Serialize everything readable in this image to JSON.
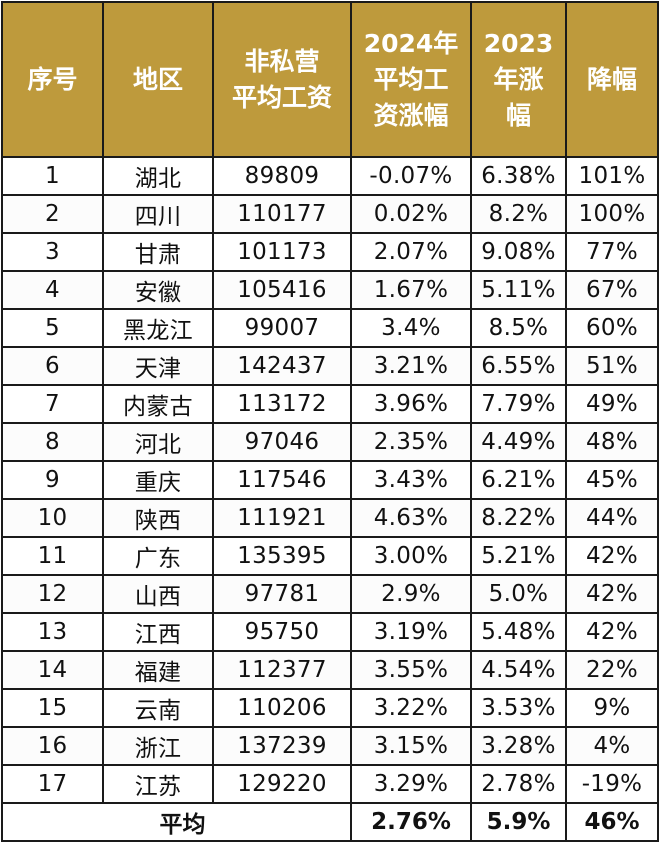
{
  "table": {
    "headers": [
      [
        "序号"
      ],
      [
        "地区"
      ],
      [
        "非私营",
        "平均工资"
      ],
      [
        "2024年",
        "平均工",
        "资涨幅"
      ],
      [
        "2023",
        "年涨",
        "幅"
      ],
      [
        "降幅"
      ]
    ],
    "rows": [
      [
        "1",
        "湖北",
        "89809",
        "-0.07%",
        "6.38%",
        "101%"
      ],
      [
        "2",
        "四川",
        "110177",
        "0.02%",
        "8.2%",
        "100%"
      ],
      [
        "3",
        "甘肃",
        "101173",
        "2.07%",
        "9.08%",
        "77%"
      ],
      [
        "4",
        "安徽",
        "105416",
        "1.67%",
        "5.11%",
        "67%"
      ],
      [
        "5",
        "黑龙江",
        "99007",
        "3.4%",
        "8.5%",
        "60%"
      ],
      [
        "6",
        "天津",
        "142437",
        "3.21%",
        "6.55%",
        "51%"
      ],
      [
        "7",
        "内蒙古",
        "113172",
        "3.96%",
        "7.79%",
        "49%"
      ],
      [
        "8",
        "河北",
        "97046",
        "2.35%",
        "4.49%",
        "48%"
      ],
      [
        "9",
        "重庆",
        "117546",
        "3.43%",
        "6.21%",
        "45%"
      ],
      [
        "10",
        "陕西",
        "111921",
        "4.63%",
        "8.22%",
        "44%"
      ],
      [
        "11",
        "广东",
        "135395",
        "3.00%",
        "5.21%",
        "42%"
      ],
      [
        "12",
        "山西",
        "97781",
        "2.9%",
        "5.0%",
        "42%"
      ],
      [
        "13",
        "江西",
        "95750",
        "3.19%",
        "5.48%",
        "42%"
      ],
      [
        "14",
        "福建",
        "112377",
        "3.55%",
        "4.54%",
        "22%"
      ],
      [
        "15",
        "云南",
        "110206",
        "3.22%",
        "3.53%",
        "9%"
      ],
      [
        "16",
        "浙江",
        "137239",
        "3.15%",
        "3.28%",
        "4%"
      ],
      [
        "17",
        "江苏",
        "129220",
        "3.29%",
        "2.78%",
        "-19%"
      ]
    ],
    "footer": {
      "label": "平均",
      "avg_2024": "2.76%",
      "avg_2023": "5.9%",
      "avg_drop": "46%"
    }
  },
  "colors": {
    "header_bg": "#be9a3c",
    "header_text": "#ffffff",
    "border": "#1a1a1a"
  }
}
